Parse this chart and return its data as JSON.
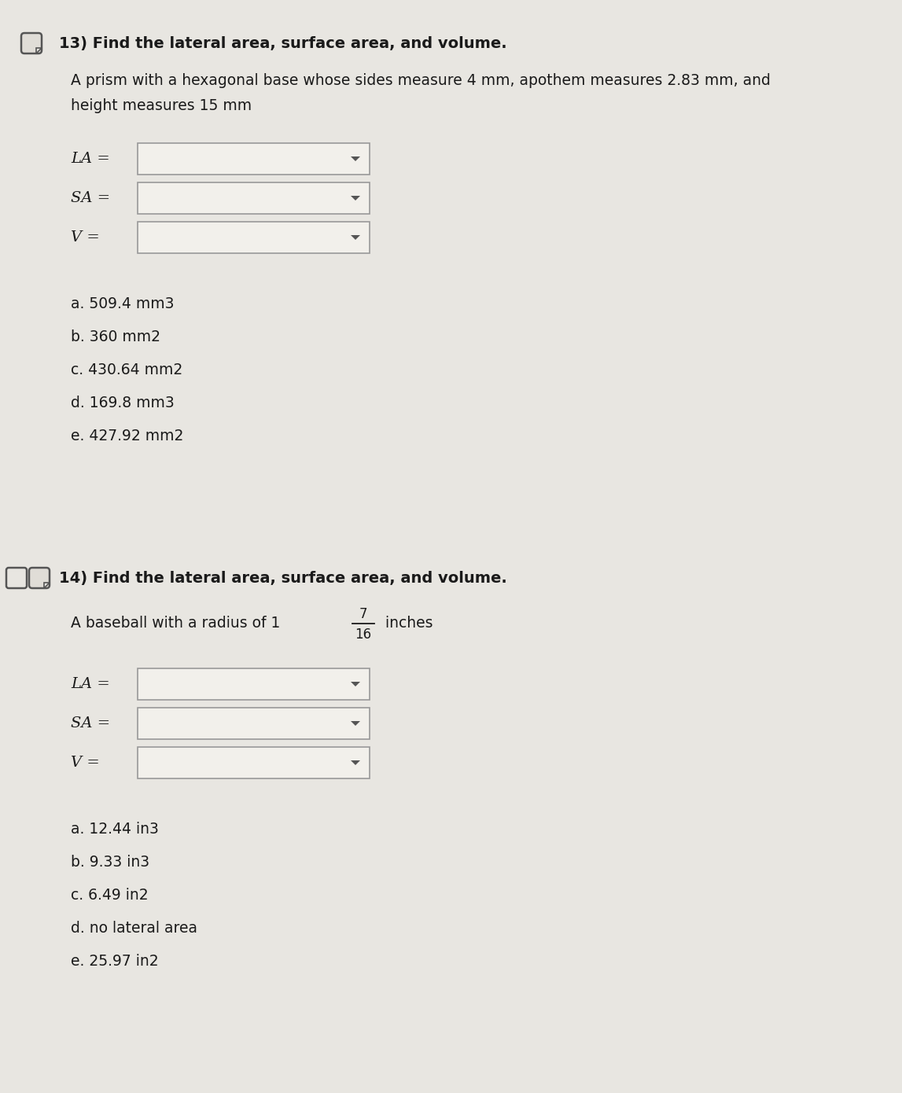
{
  "bg_color": "#e8e6e1",
  "text_color": "#1a1a1a",
  "box_fill": "#f2f0eb",
  "box_border": "#999999",
  "dropdown_arrow_color": "#555555",
  "q13_number": "13)",
  "q13_title": " Find the lateral area, surface area, and volume.",
  "q13_desc_line1": "A prism with a hexagonal base whose sides measure 4 mm, apothem measures 2.83 mm, and",
  "q13_desc_line2": "height measures 15 mm",
  "q13_labels": [
    "LA =",
    "SA =",
    "V ="
  ],
  "q13_answers_main": [
    "a. 509.4 mm",
    "b. 360 mm",
    "c. 430.64 mm",
    "d. 169.8 mm",
    "e. 427.92 mm"
  ],
  "q13_answers_sup": [
    "3",
    "2",
    "2",
    "3",
    "2"
  ],
  "q14_number": "14)",
  "q14_title": " Find the lateral area, surface area, and volume.",
  "q14_desc_pre": "A baseball with a radius of 1 ",
  "q14_frac_num": "7",
  "q14_frac_den": "16",
  "q14_desc_post": " inches",
  "q14_labels": [
    "LA =",
    "SA =",
    "V ="
  ],
  "q14_answers_main": [
    "a. 12.44 in",
    "b. 9.33 in",
    "c. 6.49 in",
    "d. no lateral area",
    "e. 25.97 in"
  ],
  "q14_answers_sup": [
    "3",
    "3",
    "2",
    "",
    "2"
  ]
}
